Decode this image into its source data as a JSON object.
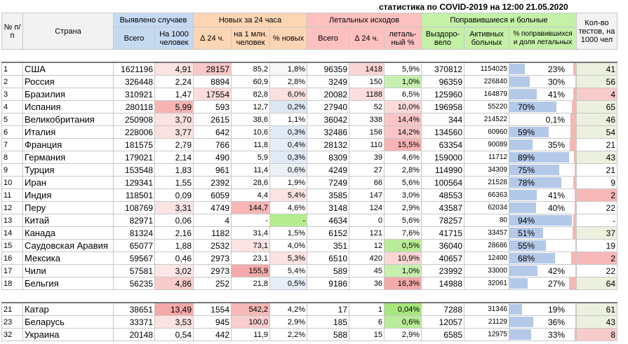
{
  "title": "статистика по COVID-2019 на 12:00 21.05.2020",
  "headers": {
    "no": "№ п/п",
    "country": "Страна",
    "detected": "Выявлено случаев",
    "new24": "Новых за 24 часа",
    "deaths": "Летальных исходов",
    "recovered": "Поправившиеся и больные",
    "tests": "Кол-во тестов, на 1000 чел",
    "total": "Всего",
    "per1000": "На 1000 человек",
    "d24": "∆ 24 ч.",
    "per1m": "на 1 млн. человек",
    "pct_new": "% новых",
    "deaths_total": "Всего",
    "deaths_d24": "∆ 24 ч.",
    "lethal_pct": "леталь-ный %",
    "recovered_col": "Выздоро-вело",
    "active": "Активных больных",
    "recovered_share": "% поправившихся и доля летальных"
  },
  "colors": {
    "blue": "#c5d9f1",
    "orange": "#fcd5b4",
    "red": "#ffc0c0",
    "green": "#c4f0a8",
    "bar": "#b4c8e8",
    "lethal_bar": "#f4b6b6",
    "tests_green": "#ebf1de",
    "tests_red": "#f8cbcb"
  },
  "rows": [
    {
      "no": "1",
      "country": "США",
      "total": "1621196",
      "per1000": "4,91",
      "d24": "28157",
      "per1m": "85,2",
      "pct": "1,8%",
      "dt": "96359",
      "dd": "1418",
      "lp": "5,9%",
      "rec": "370812",
      "act": "1154025",
      "rs": "23%",
      "rv": 23,
      "lethal": 6,
      "tests": "41",
      "c_per1000": "#fbe3e3",
      "c_d24": "#f8c8c8",
      "c_per1m": "",
      "c_pct": "#f7f7f7",
      "c_dd": "#fbd4d4",
      "c_lp": "",
      "c_tests": "#ebf1de"
    },
    {
      "no": "2",
      "country": "Россия",
      "total": "326448",
      "per1000": "2,24",
      "d24": "8894",
      "per1m": "60,9",
      "pct": "2,8%",
      "dt": "3249",
      "dd": "150",
      "lp": "1,0%",
      "rec": "96359",
      "act": "226840",
      "rs": "30%",
      "rv": 30,
      "lethal": 1,
      "tests": "56",
      "c_per1000": "",
      "c_d24": "",
      "c_per1m": "",
      "c_pct": "",
      "c_dd": "",
      "c_lp": "#c6efb0",
      "c_tests": "#ebf1de"
    },
    {
      "no": "3",
      "country": "Бразилия",
      "total": "310921",
      "per1000": "1,47",
      "d24": "17554",
      "per1m": "82,8",
      "pct": "6,0%",
      "dt": "20082",
      "dd": "1188",
      "lp": "6,5%",
      "rec": "125960",
      "act": "164879",
      "rs": "41%",
      "rv": 41,
      "lethal": 7,
      "tests": "4",
      "c_per1000": "",
      "c_d24": "#fcdcdc",
      "c_per1m": "",
      "c_pct": "#fbe0e0",
      "c_dd": "#fcdede",
      "c_lp": "",
      "c_tests": "#f8cbcb"
    },
    {
      "no": "4",
      "country": "Испания",
      "total": "280118",
      "per1000": "5,99",
      "d24": "593",
      "per1m": "12,7",
      "pct": "0,2%",
      "dt": "27940",
      "dd": "52",
      "lp": "10,0%",
      "rec": "196958",
      "act": "55220",
      "rs": "70%",
      "rv": 70,
      "lethal": 10,
      "tests": "65",
      "c_per1000": "#f6b4b4",
      "c_d24": "",
      "c_per1m": "",
      "c_pct": "#dde7f3",
      "c_dd": "",
      "c_lp": "#fbdada",
      "c_tests": "#ebf1de"
    },
    {
      "no": "5",
      "country": "Великобритания",
      "total": "250908",
      "per1000": "3,70",
      "d24": "2615",
      "per1m": "38,6",
      "pct": "1,1%",
      "dt": "36042",
      "dd": "338",
      "lp": "14,4%",
      "rec": "344",
      "act": "214522",
      "rs": "0,1%",
      "rv": 0,
      "lethal": 14,
      "tests": "46",
      "c_per1000": "#fbe2e2",
      "c_d24": "",
      "c_per1m": "",
      "c_pct": "",
      "c_dd": "",
      "c_lp": "#f8c6c6",
      "c_tests": "#ebf1de"
    },
    {
      "no": "6",
      "country": "Италия",
      "total": "228006",
      "per1000": "3,77",
      "d24": "642",
      "per1m": "10,6",
      "pct": "0,3%",
      "dt": "32486",
      "dd": "156",
      "lp": "14,2%",
      "rec": "134560",
      "act": "60960",
      "rs": "59%",
      "rv": 59,
      "lethal": 14,
      "tests": "54",
      "c_per1000": "#fbe2e2",
      "c_d24": "",
      "c_per1m": "",
      "c_pct": "#e2eaf5",
      "c_dd": "",
      "c_lp": "#f8c6c6",
      "c_tests": "#ebf1de"
    },
    {
      "no": "7",
      "country": "Франция",
      "total": "181575",
      "per1000": "2,79",
      "d24": "766",
      "per1m": "11,8",
      "pct": "0,4%",
      "dt": "28132",
      "dd": "110",
      "lp": "15,5%",
      "rec": "63354",
      "act": "90089",
      "rs": "35%",
      "rv": 35,
      "lethal": 15,
      "tests": "21",
      "c_per1000": "",
      "c_d24": "",
      "c_per1m": "",
      "c_pct": "#e6edf6",
      "c_dd": "",
      "c_lp": "#f6b4b4",
      "c_tests": ""
    },
    {
      "no": "8",
      "country": "Германия",
      "total": "179021",
      "per1000": "2,14",
      "d24": "490",
      "per1m": "5,9",
      "pct": "0,3%",
      "dt": "8309",
      "dd": "39",
      "lp": "4,6%",
      "rec": "159000",
      "act": "11712",
      "rs": "89%",
      "rv": 89,
      "lethal": 5,
      "tests": "43",
      "c_per1000": "",
      "c_d24": "",
      "c_per1m": "",
      "c_pct": "#e2eaf5",
      "c_dd": "",
      "c_lp": "",
      "c_tests": "#ebf1de"
    },
    {
      "no": "9",
      "country": "Турция",
      "total": "153548",
      "per1000": "1,83",
      "d24": "961",
      "per1m": "11,4",
      "pct": "0,6%",
      "dt": "4249",
      "dd": "27",
      "lp": "2,8%",
      "rec": "114990",
      "act": "34309",
      "rs": "75%",
      "rv": 75,
      "lethal": 3,
      "tests": "21",
      "c_per1000": "",
      "c_d24": "",
      "c_per1m": "",
      "c_pct": "#ecf1f8",
      "c_dd": "",
      "c_lp": "",
      "c_tests": ""
    },
    {
      "no": "10",
      "country": "Иран",
      "total": "129341",
      "per1000": "1,55",
      "d24": "2392",
      "per1m": "28,6",
      "pct": "1,9%",
      "dt": "7249",
      "dd": "66",
      "lp": "5,6%",
      "rec": "100564",
      "act": "21528",
      "rs": "78%",
      "rv": 78,
      "lethal": 6,
      "tests": "9",
      "c_per1000": "",
      "c_d24": "",
      "c_per1m": "",
      "c_pct": "",
      "c_dd": "",
      "c_lp": "",
      "c_tests": ""
    },
    {
      "no": "11",
      "country": "Индия",
      "total": "118501",
      "per1000": "0,09",
      "d24": "6059",
      "per1m": "4,4",
      "pct": "5,4%",
      "dt": "3585",
      "dd": "147",
      "lp": "3,0%",
      "rec": "48553",
      "act": "66363",
      "rs": "41%",
      "rv": 41,
      "lethal": 3,
      "tests": "2",
      "c_per1000": "",
      "c_d24": "",
      "c_per1m": "",
      "c_pct": "#fbe3e3",
      "c_dd": "",
      "c_lp": "",
      "c_tests": "#f6b8b8"
    },
    {
      "no": "12",
      "country": "Перу",
      "total": "108769",
      "per1000": "3,31",
      "d24": "4749",
      "per1m": "144,7",
      "pct": "4,6%",
      "dt": "3148",
      "dd": "124",
      "lp": "2,9%",
      "rec": "43587",
      "act": "62034",
      "rs": "40%",
      "rv": 40,
      "lethal": 3,
      "tests": "22",
      "c_per1000": "#fbe4e4",
      "c_d24": "",
      "c_per1m": "#f6b6b6",
      "c_pct": "",
      "c_dd": "",
      "c_lp": "",
      "c_tests": ""
    },
    {
      "no": "13",
      "country": "Китай",
      "total": "82971",
      "per1000": "0,06",
      "d24": "4",
      "per1m": "-",
      "pct": "-",
      "dt": "4634",
      "dd": "0",
      "lp": "5,6%",
      "rec": "78257",
      "act": "80",
      "rs": "94%",
      "rv": 94,
      "lethal": 6,
      "tests": "-",
      "c_per1000": "",
      "c_d24": "",
      "c_per1m": "",
      "c_pct": "#b4ec8e",
      "c_dd": "",
      "c_lp": "",
      "c_tests": ""
    },
    {
      "no": "14",
      "country": "Канада",
      "total": "81324",
      "per1000": "2,16",
      "d24": "1182",
      "per1m": "31,4",
      "pct": "1,5%",
      "dt": "6152",
      "dd": "121",
      "lp": "7,6%",
      "rec": "41715",
      "act": "33457",
      "rs": "51%",
      "rv": 51,
      "lethal": 8,
      "tests": "37",
      "c_per1000": "",
      "c_d24": "",
      "c_per1m": "",
      "c_pct": "",
      "c_dd": "",
      "c_lp": "",
      "c_tests": "#ebf1de"
    },
    {
      "no": "15",
      "country": "Саудовская Аравия",
      "total": "65077",
      "per1000": "1,88",
      "d24": "2532",
      "per1m": "73,1",
      "pct": "4,0%",
      "dt": "351",
      "dd": "12",
      "lp": "0,5%",
      "rec": "36040",
      "act": "28686",
      "rs": "55%",
      "rv": 55,
      "lethal": 1,
      "tests": "19",
      "c_per1000": "",
      "c_d24": "",
      "c_per1m": "#fce4e4",
      "c_pct": "",
      "c_dd": "",
      "c_lp": "#b8ec98",
      "c_tests": ""
    },
    {
      "no": "16",
      "country": "Мексика",
      "total": "59567",
      "per1000": "0,46",
      "d24": "2973",
      "per1m": "23,1",
      "pct": "5,3%",
      "dt": "6510",
      "dd": "420",
      "lp": "10,9%",
      "rec": "40657",
      "act": "12400",
      "rs": "68%",
      "rv": 68,
      "lethal": 11,
      "tests": "2",
      "c_per1000": "",
      "c_d24": "",
      "c_per1m": "",
      "c_pct": "#fbe3e3",
      "c_dd": "",
      "c_lp": "#fad6d6",
      "c_tests": "#f6b8b8"
    },
    {
      "no": "17",
      "country": "Чили",
      "total": "57581",
      "per1000": "3,02",
      "d24": "2973",
      "per1m": "155,9",
      "pct": "5,4%",
      "dt": "589",
      "dd": "45",
      "lp": "1,0%",
      "rec": "23992",
      "act": "33000",
      "rs": "42%",
      "rv": 42,
      "lethal": 1,
      "tests": "22",
      "c_per1000": "#fce6e6",
      "c_d24": "",
      "c_per1m": "#f4aaaa",
      "c_pct": "",
      "c_dd": "",
      "c_lp": "#c6efb0",
      "c_tests": ""
    },
    {
      "no": "18",
      "country": "Бельгия",
      "total": "56235",
      "per1000": "4,86",
      "d24": "252",
      "per1m": "21,8",
      "pct": "0,5%",
      "dt": "9186",
      "dd": "36",
      "lp": "16,3%",
      "rec": "14988",
      "act": "32061",
      "rs": "27%",
      "rv": 27,
      "lethal": 16,
      "tests": "64",
      "c_per1000": "#f9cccc",
      "c_d24": "",
      "c_per1m": "",
      "c_pct": "#e6edf6",
      "c_dd": "",
      "c_lp": "#f4aaaa",
      "c_tests": "#ebf1de"
    }
  ],
  "rows2": [
    {
      "no": "21",
      "country": "Катар",
      "total": "38651",
      "per1000": "13,49",
      "d24": "1554",
      "per1m": "542,2",
      "pct": "4,2%",
      "dt": "17",
      "dd": "1",
      "lp": "0,04%",
      "rec": "7288",
      "act": "31346",
      "rs": "19%",
      "rv": 19,
      "lethal": 0,
      "tests": "61",
      "c_per1000": "#f4a8a8",
      "c_d24": "",
      "c_per1m": "#f6b8b8",
      "c_pct": "",
      "c_dd": "",
      "c_lp": "#a8e67e",
      "c_tests": "#ebf1de"
    },
    {
      "no": "23",
      "country": "Беларусь",
      "total": "33371",
      "per1000": "3,53",
      "d24": "945",
      "per1m": "100,0",
      "pct": "2,9%",
      "dt": "185",
      "dd": "6",
      "lp": "0,6%",
      "rec": "12057",
      "act": "21129",
      "rs": "36%",
      "rv": 36,
      "lethal": 1,
      "tests": "43",
      "c_per1000": "#fbe3e3",
      "c_d24": "",
      "c_per1m": "#f9cece",
      "c_pct": "",
      "c_dd": "",
      "c_lp": "#b8ec98",
      "c_tests": "#ebf1de"
    },
    {
      "no": "32",
      "country": "Украина",
      "total": "20148",
      "per1000": "0,54",
      "d24": "442",
      "per1m": "11,9",
      "pct": "2,2%",
      "dt": "588",
      "dd": "15",
      "lp": "2,9%",
      "rec": "6585",
      "act": "12975",
      "rs": "33%",
      "rv": 33,
      "lethal": 3,
      "tests": "8",
      "c_per1000": "",
      "c_d24": "",
      "c_per1m": "",
      "c_pct": "",
      "c_dd": "",
      "c_lp": "",
      "c_tests": "#f8cbcb"
    }
  ]
}
